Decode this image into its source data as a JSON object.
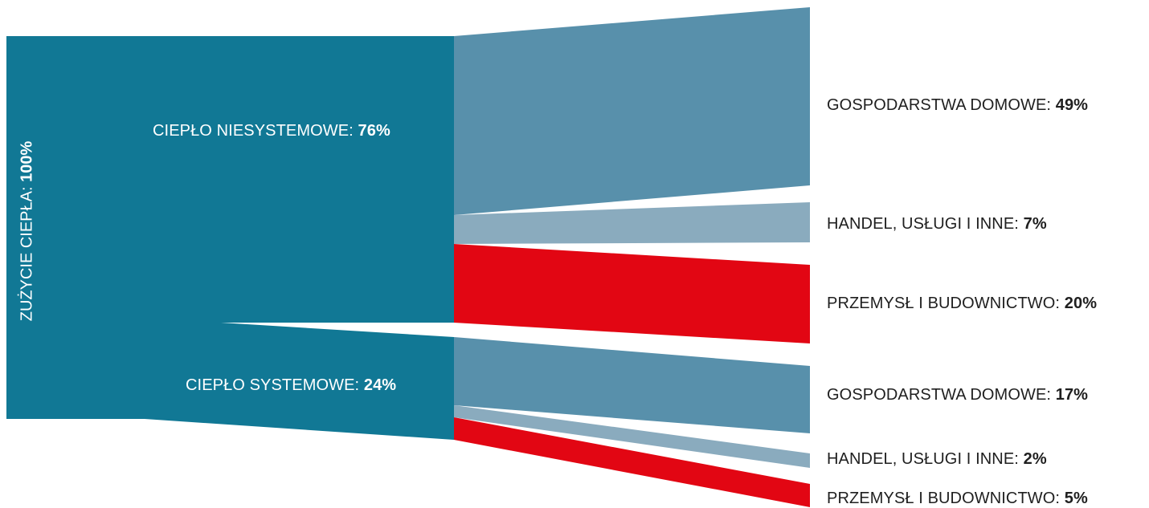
{
  "colors": {
    "node": "#117895",
    "household": "#5890ab",
    "trade": "#8aabbe",
    "industry": "#e20613"
  },
  "root": {
    "label": "ZUŻYCIE CIEPŁA:",
    "value": "100%"
  },
  "groups": [
    {
      "label": "CIEPŁO NIESYSTEMOWE:",
      "value": "76%",
      "outputs": [
        {
          "label": "GOSPODARSTWA DOMOWE:",
          "value": "49%",
          "category": "household"
        },
        {
          "label": "HANDEL, USŁUGI I INNE:",
          "value": "7%",
          "category": "trade"
        },
        {
          "label": "PRZEMYSŁ I BUDOWNICTWO:",
          "value": "20%",
          "category": "industry"
        }
      ]
    },
    {
      "label": "CIEPŁO SYSTEMOWE:",
      "value": "24%",
      "outputs": [
        {
          "label": "GOSPODARSTWA DOMOWE:",
          "value": "17%",
          "category": "household"
        },
        {
          "label": "HANDEL, USŁUGI I INNE:",
          "value": "2%",
          "category": "trade"
        },
        {
          "label": "PRZEMYSŁ I BUDOWNICTWO:",
          "value": "5%",
          "category": "industry"
        }
      ]
    }
  ]
}
